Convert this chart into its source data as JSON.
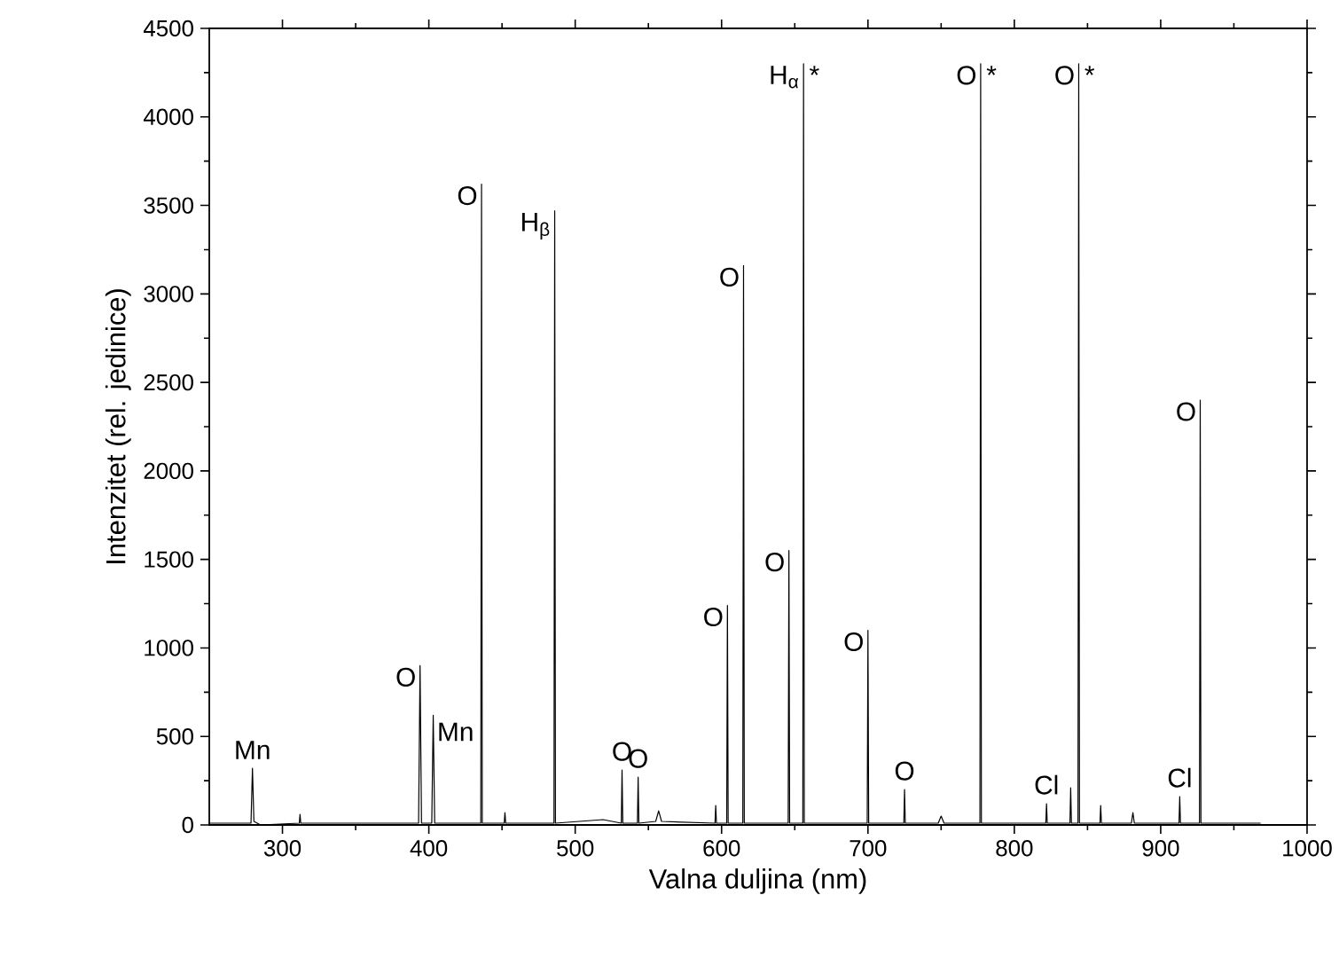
{
  "chart_data": {
    "type": "line",
    "xlabel": "Valna duljina (nm)",
    "ylabel": "Intenzitet (rel. jedinice)",
    "xlim": [
      250,
      1000
    ],
    "ylim": [
      0,
      4500
    ],
    "xticks": [
      300,
      400,
      500,
      600,
      700,
      800,
      900,
      1000
    ],
    "yticks": [
      0,
      500,
      1000,
      1500,
      2000,
      2500,
      3000,
      3500,
      4000,
      4500
    ],
    "series": [
      {
        "color": "#000000",
        "x": [
          250,
          278.5,
          279.5,
          280.5,
          285,
          311.5,
          312,
          312.5,
          370,
          393,
          394,
          395,
          402,
          403,
          404,
          435.5,
          436,
          436.5,
          451.5,
          452,
          452.5,
          485.5,
          486,
          486.5,
          519,
          531.5,
          532,
          532.5,
          542.5,
          543,
          543.5,
          555,
          557,
          559,
          595.5,
          596,
          596.5,
          603.5,
          604,
          604.5,
          614.5,
          615,
          615.5,
          645.5,
          646,
          646.5,
          655.5,
          656,
          656.5,
          699.5,
          700,
          700.5,
          724.5,
          725,
          725.5,
          748,
          750,
          752,
          776.5,
          777,
          777.5,
          821.5,
          822,
          822.5,
          838,
          838.5,
          839,
          843.5,
          844,
          844.5,
          858.5,
          859,
          859.5,
          880,
          881,
          882,
          912.5,
          913,
          913.5,
          926.5,
          927,
          927.5,
          968
        ],
        "values": [
          10,
          10,
          320,
          20,
          0,
          10,
          60,
          10,
          10,
          10,
          900,
          10,
          10,
          620,
          10,
          10,
          3620,
          10,
          10,
          70,
          10,
          10,
          3470,
          10,
          30,
          10,
          310,
          10,
          10,
          270,
          10,
          20,
          80,
          20,
          10,
          110,
          10,
          10,
          1240,
          10,
          10,
          3160,
          10,
          10,
          1550,
          10,
          10,
          4300,
          10,
          10,
          1100,
          10,
          10,
          200,
          10,
          10,
          50,
          10,
          10,
          4300,
          10,
          10,
          120,
          10,
          10,
          210,
          10,
          10,
          4300,
          10,
          10,
          110,
          10,
          10,
          70,
          10,
          10,
          160,
          10,
          10,
          2400,
          10,
          10
        ]
      }
    ],
    "annotations": [
      {
        "text": "Mn",
        "x": 279.5,
        "y": 320
      },
      {
        "text": "O",
        "x": 394,
        "y": 900
      },
      {
        "text": "Mn",
        "x": 403,
        "y": 620
      },
      {
        "text": "O",
        "x": 436,
        "y": 3620
      },
      {
        "text": "H$_{β}$",
        "x": 486,
        "y": 3470
      },
      {
        "text": "O",
        "x": 532,
        "y": 310
      },
      {
        "text": "O",
        "x": 543,
        "y": 270
      },
      {
        "text": "O",
        "x": 604,
        "y": 1240
      },
      {
        "text": "O",
        "x": 615,
        "y": 3160
      },
      {
        "text": "O",
        "x": 646,
        "y": 1550
      },
      {
        "text": "H$_{α}$",
        "x": 656,
        "y": 4300
      },
      {
        "text": "*",
        "x": 656,
        "y": 4300
      },
      {
        "text": "O",
        "x": 700,
        "y": 1100
      },
      {
        "text": "O",
        "x": 725,
        "y": 200
      },
      {
        "text": "O",
        "x": 777,
        "y": 4300
      },
      {
        "text": "*",
        "x": 777,
        "y": 4300
      },
      {
        "text": "Cl",
        "x": 822,
        "y": 120
      },
      {
        "text": "O",
        "x": 844,
        "y": 4300
      },
      {
        "text": "*",
        "x": 844,
        "y": 4300
      },
      {
        "text": "Cl",
        "x": 913,
        "y": 160
      },
      {
        "text": "O",
        "x": 927,
        "y": 2400
      }
    ]
  }
}
